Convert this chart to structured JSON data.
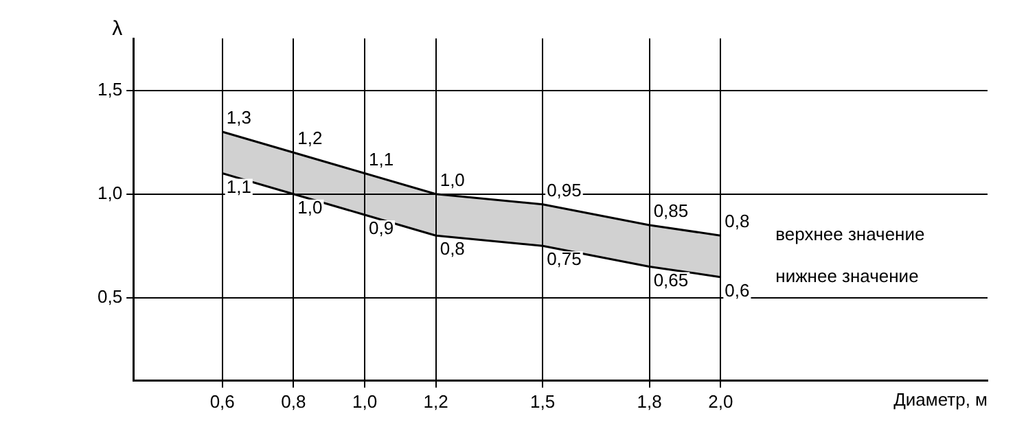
{
  "chart_data": {
    "type": "area",
    "xlabel": "Диаметр, м",
    "ylabel": "λ",
    "x": [
      0.6,
      0.8,
      1.0,
      1.2,
      1.5,
      1.8,
      2.0
    ],
    "series": [
      {
        "name": "верхнее значение",
        "color": "#000000",
        "values": [
          1.3,
          1.2,
          1.1,
          1.0,
          0.95,
          0.85,
          0.8
        ],
        "value_labels": [
          "1,3",
          "1,2",
          "1,1",
          "1,0",
          "0,95",
          "0,85",
          "0,8"
        ]
      },
      {
        "name": "нижнее значение",
        "type": "line",
        "color": "#000000",
        "values": [
          1.1,
          1.0,
          0.9,
          0.8,
          0.75,
          0.65,
          0.6
        ],
        "value_labels": [
          "1,1",
          "1,0",
          "0,9",
          "0,8",
          "0,75",
          "0,65",
          "0,6"
        ]
      }
    ],
    "xlim": [
      0.35,
      2.75
    ],
    "xticks": [
      {
        "value": 0.6,
        "label": "0,6"
      },
      {
        "value": 0.8,
        "label": "0,8"
      },
      {
        "value": 1.0,
        "label": "1,0"
      },
      {
        "value": 1.2,
        "label": "1,2"
      },
      {
        "value": 1.5,
        "label": "1,5"
      },
      {
        "value": 1.8,
        "label": "1,8"
      },
      {
        "value": 2.0,
        "label": "2,0"
      }
    ],
    "ylim": [
      0.1,
      1.75
    ],
    "yticks": [
      {
        "value": 0.5,
        "label": "0,5"
      },
      {
        "value": 1.0,
        "label": "1,0"
      },
      {
        "value": 1.5,
        "label": "1,5"
      }
    ],
    "grid": true,
    "legend": false,
    "marker": "none",
    "line_style": "solid"
  }
}
